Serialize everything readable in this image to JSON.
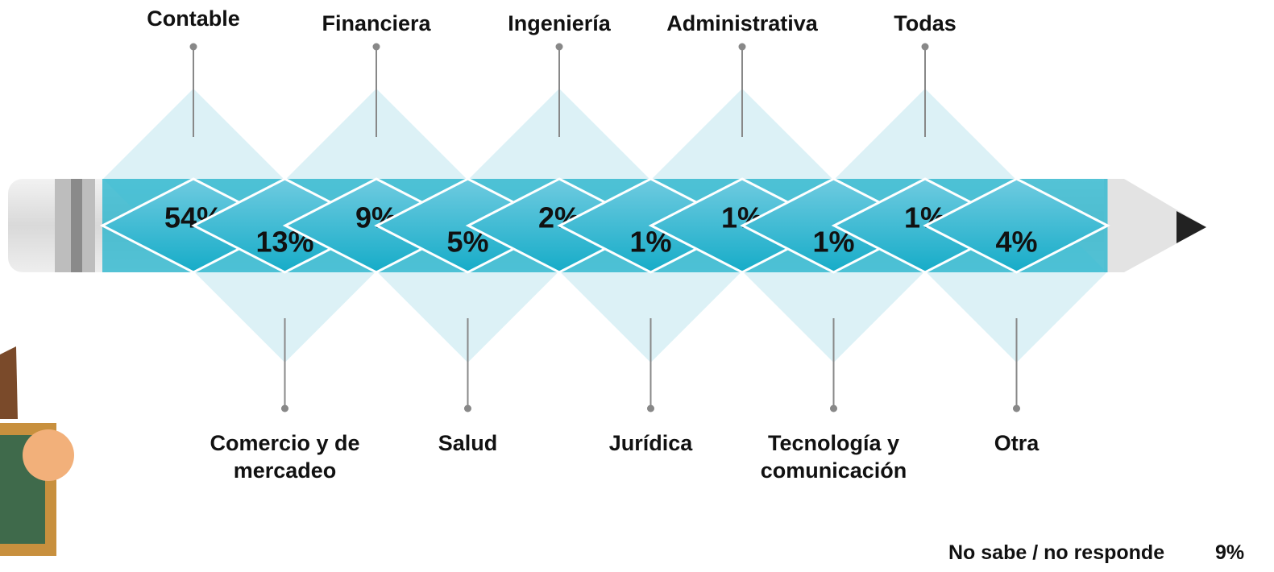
{
  "chart_data": {
    "type": "pencil",
    "categories": [
      "Contable",
      "Comercio y de mercadeo",
      "Financiera",
      "Salud",
      "Ingeniería",
      "Jurídica",
      "Administrativa",
      "Tecnología y comunicación",
      "Todas",
      "Otra"
    ],
    "values": [
      54,
      13,
      9,
      5,
      2,
      1,
      1,
      1,
      1,
      4
    ],
    "value_labels": [
      "54%",
      "13%",
      "9%",
      "5%",
      "2%",
      "1%",
      "1%",
      "1%",
      "1%",
      "4%"
    ],
    "color": "#1fb3cc",
    "note": {
      "label": "No sabe / no responde",
      "value": 9,
      "value_label": "9%"
    }
  }
}
